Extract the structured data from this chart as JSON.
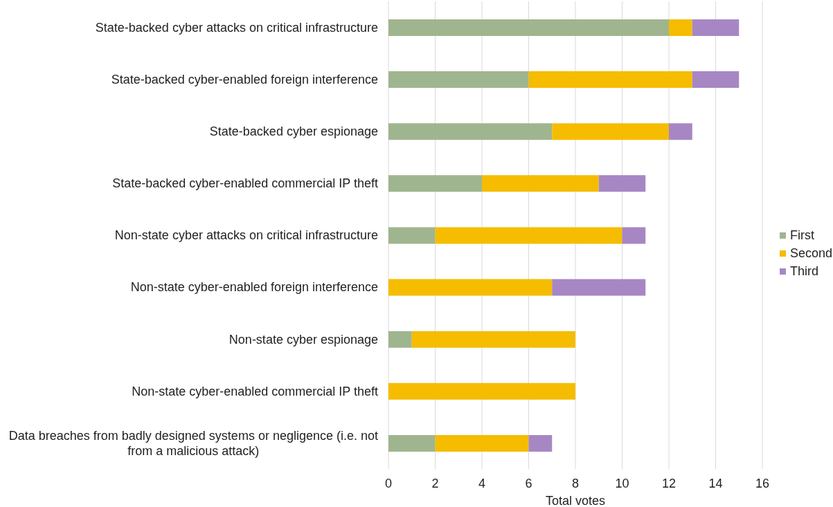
{
  "chart_data": {
    "type": "bar",
    "orientation": "horizontal",
    "stacked": true,
    "categories": [
      "State-backed cyber attacks on critical infrastructure",
      "State-backed cyber-enabled foreign interference",
      "State-backed cyber espionage",
      "State-backed cyber-enabled commercial IP theft",
      "Non-state cyber attacks on critical infrastructure",
      "Non-state cyber-enabled foreign interference",
      "Non-state cyber espionage",
      "Non-state cyber-enabled commercial IP theft",
      "Data breaches from badly designed systems or negligence (i.e. not from a malicious attack)"
    ],
    "series": [
      {
        "name": "First",
        "color": "#9fb58f",
        "values": [
          12,
          6,
          7,
          4,
          2,
          0,
          1,
          0,
          2
        ]
      },
      {
        "name": "Second",
        "color": "#f5bc00",
        "values": [
          1,
          7,
          5,
          5,
          8,
          7,
          7,
          8,
          4
        ]
      },
      {
        "name": "Third",
        "color": "#a687c4",
        "values": [
          2,
          2,
          1,
          2,
          1,
          4,
          0,
          0,
          1
        ]
      }
    ],
    "xlabel": "Total votes",
    "xlim": [
      0,
      16
    ],
    "xticks": [
      0,
      2,
      4,
      6,
      8,
      10,
      12,
      14,
      16
    ],
    "grid": "x",
    "legend": "right"
  }
}
